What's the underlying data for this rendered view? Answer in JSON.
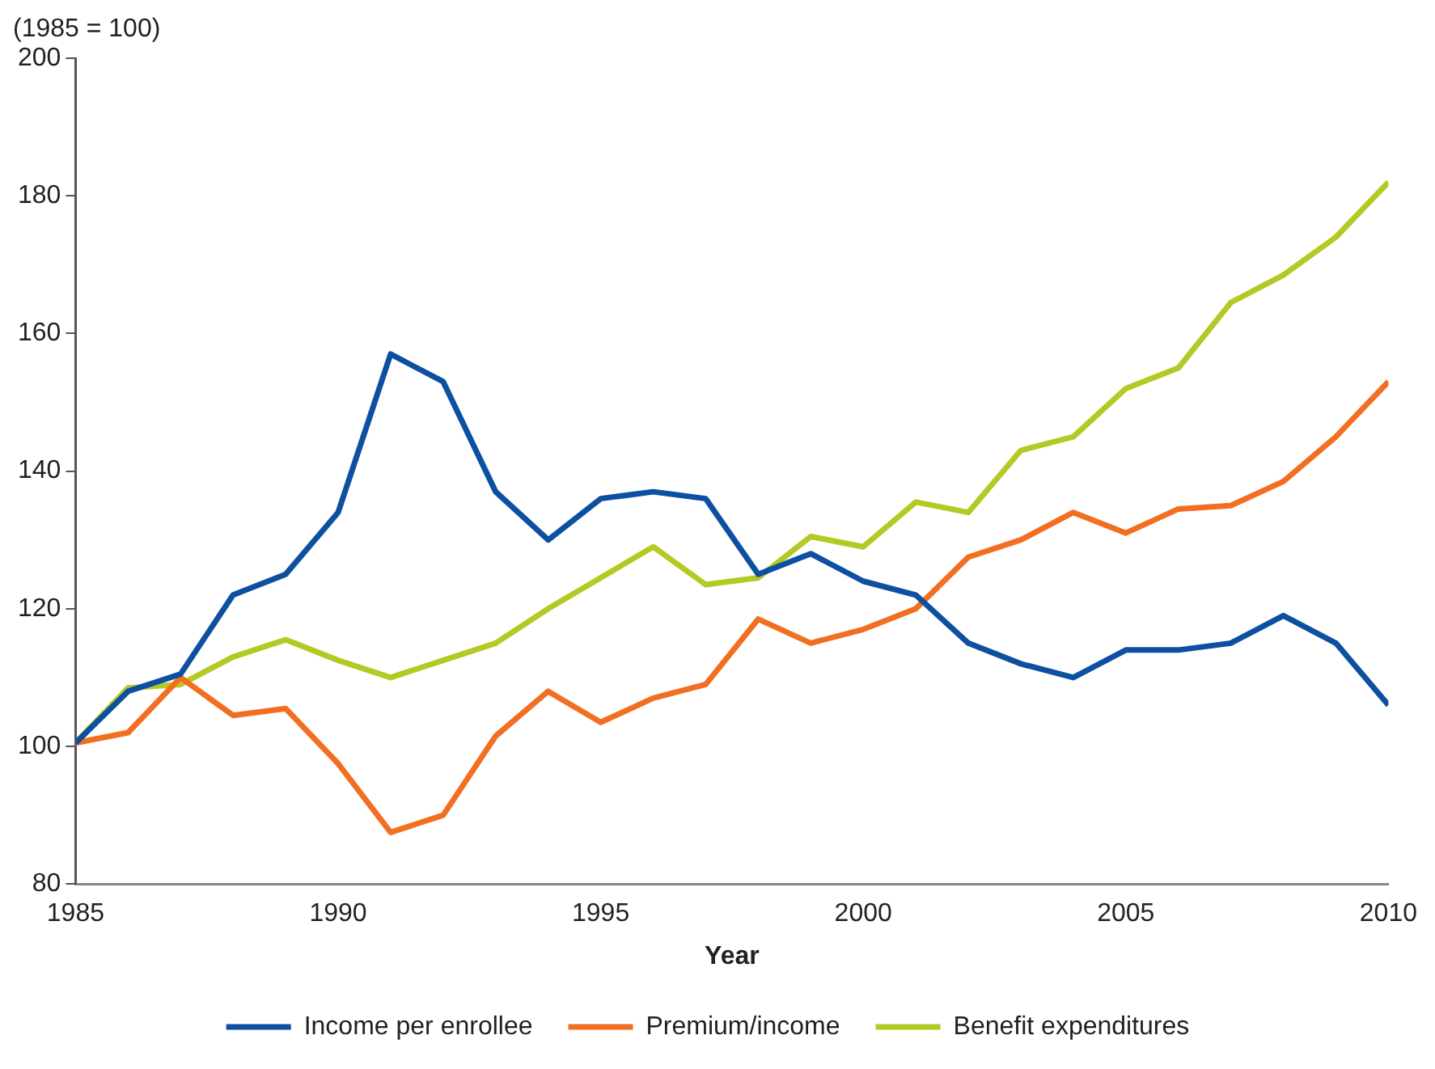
{
  "chart_data": {
    "type": "line",
    "ylabel": "(1985 = 100)",
    "xlabel": "Year",
    "x": [
      1985,
      1986,
      1987,
      1988,
      1989,
      1990,
      1991,
      1992,
      1993,
      1994,
      1995,
      1996,
      1997,
      1998,
      1999,
      2000,
      2001,
      2002,
      2003,
      2004,
      2005,
      2006,
      2007,
      2008,
      2009,
      2010
    ],
    "series": [
      {
        "name": "Income per enrollee",
        "color": "#0d4fa0",
        "values": [
          100.5,
          108,
          110.5,
          122,
          125,
          134,
          157,
          153,
          137,
          130,
          136,
          137,
          136,
          125,
          128,
          124,
          122,
          115,
          112,
          110,
          114,
          114,
          115,
          119,
          115,
          106
        ]
      },
      {
        "name": "Premium/income",
        "color": "#f26f21",
        "values": [
          100.5,
          102,
          110,
          104.5,
          105.5,
          97.5,
          87.5,
          90,
          101.5,
          108,
          103.5,
          107,
          109,
          118.5,
          115,
          117,
          120,
          127.5,
          130,
          134,
          131,
          134.5,
          135,
          138.5,
          145,
          153
        ]
      },
      {
        "name": "Benefit expenditures",
        "color": "#b5c924",
        "values": [
          100.5,
          108.5,
          109,
          113,
          115.5,
          112.5,
          110,
          112.5,
          115,
          120,
          124.5,
          129,
          123.5,
          124.5,
          130.5,
          129,
          135.5,
          134,
          143,
          145,
          152,
          155,
          164.5,
          168.5,
          174,
          182
        ]
      }
    ],
    "xlim": [
      1985,
      2010
    ],
    "xticks": [
      1985,
      1990,
      1995,
      2000,
      2005,
      2010
    ],
    "ylim": [
      80,
      200
    ],
    "yticks": [
      80,
      100,
      120,
      140,
      160,
      180,
      200
    ],
    "grid": false,
    "legend": "bottom",
    "marker": "none",
    "line_style": "solid"
  }
}
